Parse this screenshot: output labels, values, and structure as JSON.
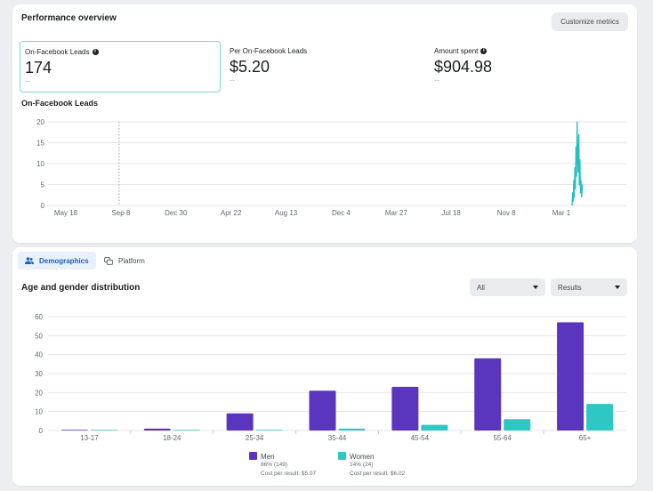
{
  "overview": {
    "title": "Performance overview",
    "customize_label": "Customize metrics",
    "metrics": [
      {
        "label": "On-Facebook Leads",
        "value": "174",
        "sub": "--",
        "info": true
      },
      {
        "label": "Per On-Facebook Leads",
        "value": "$5.20",
        "sub": "--",
        "info": false
      },
      {
        "label": "Amount spent",
        "value": "$904.98",
        "sub": "--",
        "info": true
      }
    ],
    "chart_title": "On-Facebook Leads"
  },
  "tabs": {
    "demographics": "Demographics",
    "platform": "Platform"
  },
  "distribution": {
    "title": "Age and gender distribution",
    "filter_value": "All",
    "metric_value": "Results",
    "legend": [
      {
        "name": "Men",
        "share": "86% (149)",
        "cost": "Cost per result: $5.07"
      },
      {
        "name": "Women",
        "share": "14% (24)",
        "cost": "Cost per result: $6.02"
      }
    ]
  },
  "colors": {
    "men": "#5a35bd",
    "women": "#2ec7c4",
    "line": "#26bfbf",
    "accent": "#1d5fbf"
  },
  "chart_data": [
    {
      "type": "line",
      "title": "On-Facebook Leads",
      "x_ticks": [
        "May 18",
        "Sep 8",
        "Dec 30",
        "Apr 22",
        "Aug 13",
        "Dec 4",
        "Mar 27",
        "Jul 18",
        "Nov 8",
        "Mar 1"
      ],
      "ylim": [
        0,
        20
      ],
      "y_ticks": [
        0,
        5,
        10,
        15,
        20
      ],
      "grid": true,
      "series": [
        {
          "values": [
            0,
            3,
            1,
            6,
            2,
            9,
            4,
            14,
            7,
            20,
            12,
            8,
            17,
            5,
            11,
            3,
            6,
            2,
            4,
            5
          ]
        }
      ]
    },
    {
      "type": "bar",
      "categories": [
        "13-17",
        "18-24",
        "25-34",
        "35-44",
        "45-54",
        "55-64",
        "65+"
      ],
      "ylim": [
        0,
        60
      ],
      "y_ticks": [
        0,
        10,
        20,
        30,
        40,
        50,
        60
      ],
      "grid": true,
      "series": [
        {
          "name": "Men",
          "values": [
            0,
            1,
            9,
            21,
            23,
            38,
            57
          ]
        },
        {
          "name": "Women",
          "values": [
            0,
            0,
            0,
            1,
            3,
            6,
            14
          ]
        }
      ]
    }
  ]
}
